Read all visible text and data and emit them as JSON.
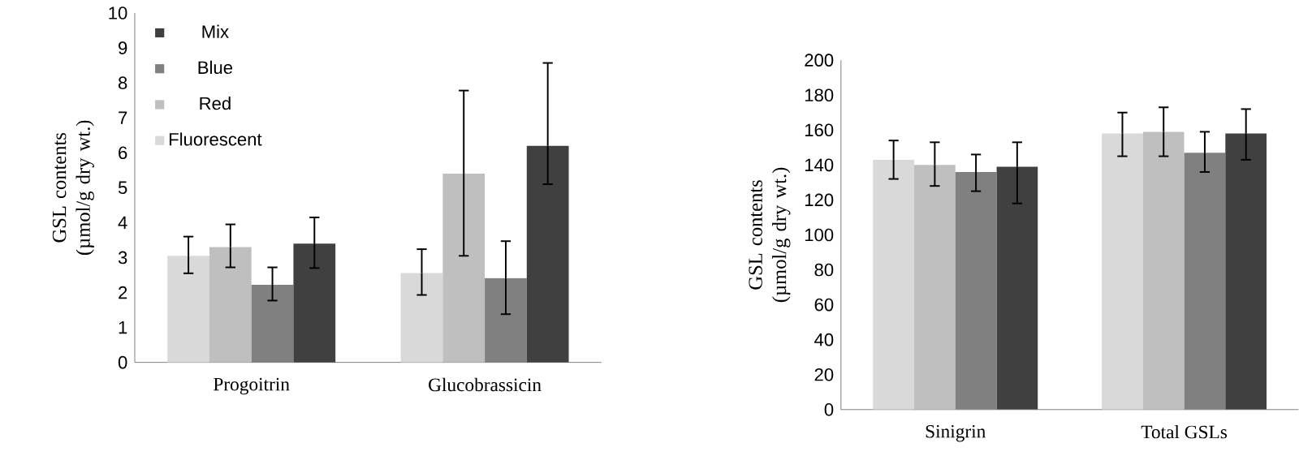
{
  "chart_data": [
    {
      "type": "bar",
      "ylabel": "GSL contents (µmol/g dry wt.)",
      "categories": [
        "Progoitrin",
        "Glucobrassicin"
      ],
      "ylim": [
        0,
        10
      ],
      "yticks": [
        0,
        1,
        2,
        3,
        4,
        5,
        6,
        7,
        8,
        9,
        10
      ],
      "legend": "top left",
      "series": [
        {
          "name": "Fluorescent",
          "color": "#d9d9d9",
          "values": [
            3.05,
            2.56
          ],
          "errors": [
            [
              2.55,
              3.6
            ],
            [
              1.93,
              3.24
            ]
          ]
        },
        {
          "name": "Red",
          "color": "#bfbfbf",
          "values": [
            3.3,
            5.4
          ],
          "errors": [
            [
              2.72,
              3.95
            ],
            [
              3.05,
              7.78
            ]
          ]
        },
        {
          "name": "Blue",
          "color": "#808080",
          "values": [
            2.22,
            2.41
          ],
          "errors": [
            [
              1.77,
              2.72
            ],
            [
              1.38,
              3.47
            ]
          ]
        },
        {
          "name": "Mix",
          "color": "#404040",
          "values": [
            3.4,
            6.2
          ],
          "errors": [
            [
              2.7,
              4.15
            ],
            [
              5.1,
              8.57
            ]
          ]
        }
      ]
    },
    {
      "type": "bar",
      "ylabel": "GSL contents (µmol/g dry wt.)",
      "categories": [
        "Sinigrin",
        "Total GSLs"
      ],
      "ylim": [
        0,
        200
      ],
      "yticks": [
        0,
        20,
        40,
        60,
        80,
        100,
        120,
        140,
        160,
        180,
        200
      ],
      "series": [
        {
          "color": "#d9d9d9",
          "values": [
            143,
            158
          ],
          "errors": [
            [
              132,
              154
            ],
            [
              145,
              170
            ]
          ]
        },
        {
          "color": "#bfbfbf",
          "values": [
            140,
            159
          ],
          "errors": [
            [
              128,
              153
            ],
            [
              145,
              173
            ]
          ]
        },
        {
          "color": "#808080",
          "values": [
            136,
            147
          ],
          "errors": [
            [
              125,
              146
            ],
            [
              136,
              159
            ]
          ]
        },
        {
          "color": "#404040",
          "values": [
            139,
            158
          ],
          "errors": [
            [
              118,
              153
            ],
            [
              143,
              172
            ]
          ]
        }
      ]
    }
  ]
}
